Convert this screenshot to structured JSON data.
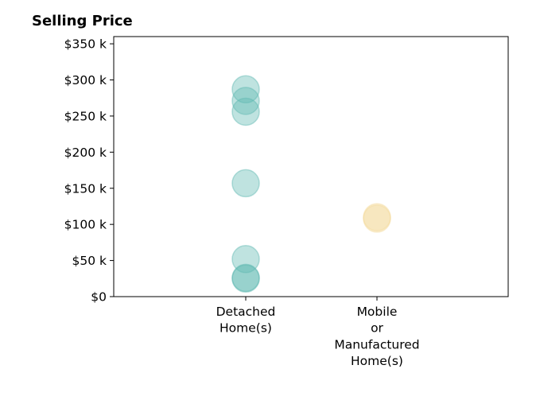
{
  "chart_data": {
    "type": "scatter",
    "title": "Selling Price",
    "xlabel": "",
    "ylabel": "",
    "categories": [
      [
        "Detached",
        "Home(s)"
      ],
      [
        "Mobile",
        "or",
        "Manufactured",
        "Home(s)"
      ]
    ],
    "yticks": [
      {
        "value": 0,
        "label": "$0"
      },
      {
        "value": 50000,
        "label": "$50 k"
      },
      {
        "value": 100000,
        "label": "$100 k"
      },
      {
        "value": 150000,
        "label": "$150 k"
      },
      {
        "value": 200000,
        "label": "$200 k"
      },
      {
        "value": 250000,
        "label": "$250 k"
      },
      {
        "value": 300000,
        "label": "$300 k"
      },
      {
        "value": 350000,
        "label": "$350 k"
      }
    ],
    "ylim": [
      0,
      360000
    ],
    "grid": false,
    "series": [
      {
        "category_index": 0,
        "color": "#5fb8b1",
        "values": [
          287000,
          271000,
          256000,
          157000,
          52000,
          26000,
          25000
        ]
      },
      {
        "category_index": 1,
        "color": "#f3d99a",
        "values": [
          110000,
          108000
        ]
      }
    ]
  }
}
